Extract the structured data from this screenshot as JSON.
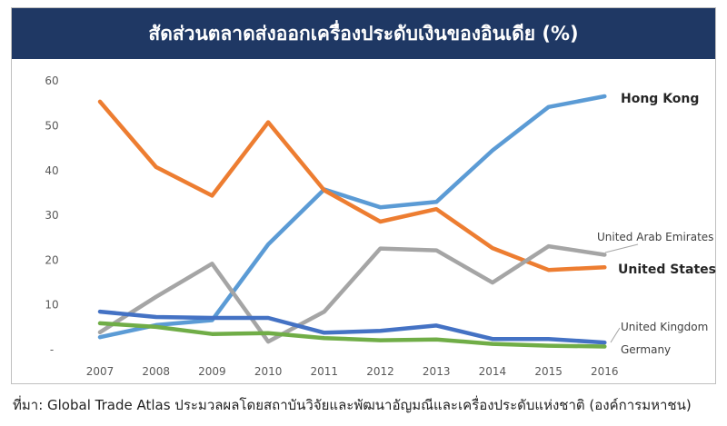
{
  "title": "สัดส่วนตลาดส่งออกเครื่องประดับเงินของอินเดีย (%)",
  "source": "ที่มา: Global Trade Atlas ประมวลผลโดยสถาบันวิจัยและพัฒนาอัญมณีและเครื่องประดับแห่งชาติ (องค์การมหาชน)",
  "chart_data": {
    "type": "line",
    "title": "สัดส่วนตลาดส่งออกเครื่องประดับเงินของอินเดีย (%)",
    "x": [
      "2007",
      "2008",
      "2009",
      "2010",
      "2011",
      "2012",
      "2013",
      "2014",
      "2015",
      "2016"
    ],
    "ylim": [
      0,
      60
    ],
    "yticks": [
      "-",
      "10",
      "20",
      "30",
      "40",
      "50",
      "60"
    ],
    "grid": false,
    "series": [
      {
        "name": "Hong Kong",
        "color": "#5b9bd5",
        "emphasis": true,
        "values": [
          2.8,
          5.5,
          6.6,
          23.5,
          35.8,
          31.8,
          33.0,
          44.5,
          54.2,
          56.6
        ]
      },
      {
        "name": "United States",
        "color": "#ed7d31",
        "emphasis": true,
        "values": [
          55.4,
          40.8,
          34.4,
          50.8,
          35.6,
          28.6,
          31.4,
          22.7,
          17.8,
          18.4
        ]
      },
      {
        "name": "United Arab Emirates",
        "color": "#a5a5a5",
        "emphasis": false,
        "values": [
          3.9,
          11.8,
          19.2,
          1.8,
          8.5,
          22.6,
          22.2,
          15.0,
          23.1,
          21.2
        ]
      },
      {
        "name": "United Kingdom",
        "color": "#4472c4",
        "emphasis": false,
        "values": [
          8.5,
          7.3,
          7.1,
          7.1,
          3.8,
          4.2,
          5.4,
          2.4,
          2.4,
          1.6
        ]
      },
      {
        "name": "Germany",
        "color": "#70ad47",
        "emphasis": false,
        "values": [
          5.9,
          5.1,
          3.5,
          3.7,
          2.6,
          2.1,
          2.3,
          1.3,
          0.9,
          0.7
        ]
      }
    ]
  }
}
